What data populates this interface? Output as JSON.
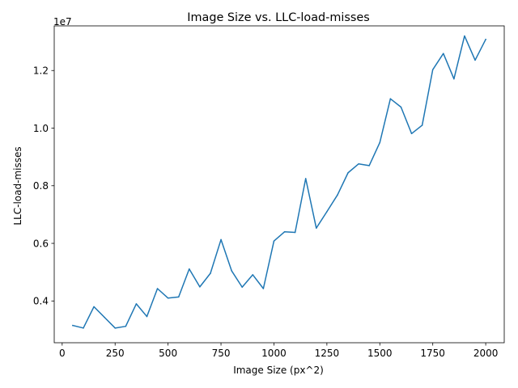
{
  "chart_data": {
    "type": "line",
    "title": "Image Size vs. LLC-load-misses",
    "xlabel": "Image Size (px^2)",
    "ylabel": "LLC-load-misses",
    "offset_text": "1e7",
    "xlim": [
      -37.5,
      2087.5
    ],
    "ylim": [
      2550000,
      13550000
    ],
    "xticks": [
      0,
      250,
      500,
      750,
      1000,
      1250,
      1500,
      1750,
      2000
    ],
    "xtick_labels": [
      "0",
      "250",
      "500",
      "750",
      "1000",
      "1250",
      "1500",
      "1750",
      "2000"
    ],
    "yticks": [
      4000000,
      6000000,
      8000000,
      10000000,
      12000000
    ],
    "ytick_labels": [
      "0.4",
      "0.6",
      "0.8",
      "1.0",
      "1.2"
    ],
    "grid": false,
    "series": [
      {
        "color": "#1f77b4",
        "x": [
          50,
          100,
          150,
          200,
          250,
          300,
          350,
          400,
          450,
          500,
          550,
          600,
          650,
          700,
          750,
          800,
          850,
          900,
          950,
          1000,
          1050,
          1100,
          1150,
          1200,
          1250,
          1300,
          1350,
          1400,
          1450,
          1500,
          1550,
          1600,
          1650,
          1700,
          1750,
          1800,
          1850,
          1900,
          1950,
          2000
        ],
        "y": [
          3150000,
          3060000,
          3800000,
          3430000,
          3060000,
          3120000,
          3900000,
          3460000,
          4430000,
          4100000,
          4140000,
          5110000,
          4490000,
          4960000,
          6130000,
          5050000,
          4480000,
          4910000,
          4430000,
          6080000,
          6400000,
          6380000,
          8250000,
          6530000,
          7100000,
          7680000,
          8450000,
          8760000,
          8700000,
          9500000,
          11020000,
          10730000,
          9810000,
          10100000,
          12030000,
          12590000,
          11710000,
          13200000,
          12360000,
          13080000
        ]
      }
    ]
  }
}
